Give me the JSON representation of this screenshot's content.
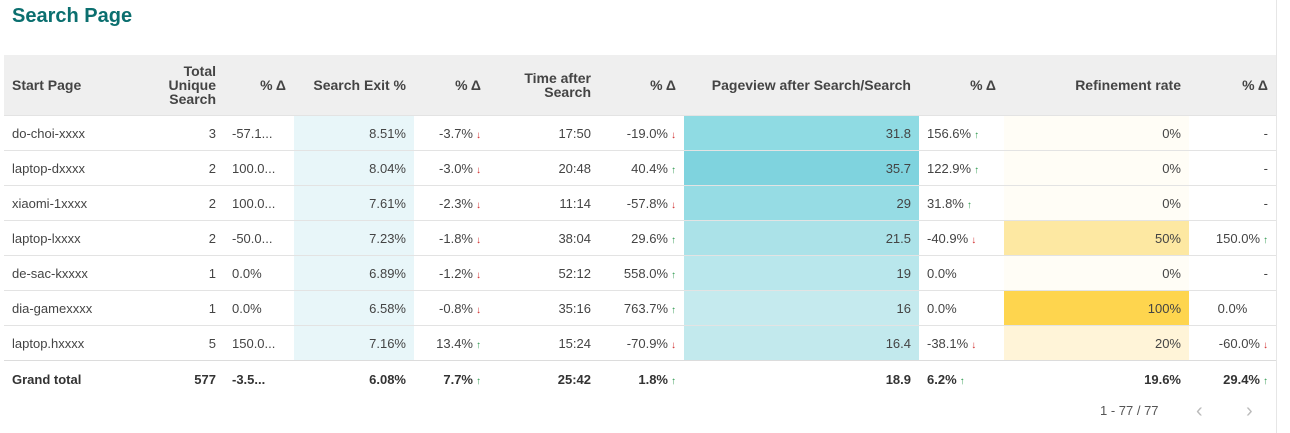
{
  "title": "Search Page",
  "headers": {
    "start_page": "Start Page",
    "total_unique_search": "Total Unique Search",
    "pct_delta": "% Δ",
    "search_exit": "Search Exit %",
    "time_after_search": "Time after Search",
    "pageview_after_search": "Pageview after Search/Search",
    "refinement_rate": "Refinement rate"
  },
  "rows": [
    {
      "page": "do-choi-xxxx",
      "total": "3",
      "total_d": "-57.1...",
      "exit": "8.51%",
      "exit_d": "-3.7%",
      "exit_dir": "down",
      "time": "17:50",
      "time_d": "-19.0%",
      "time_dir": "down",
      "pv": "31.8",
      "pv_d": "156.6%",
      "pv_dir": "up",
      "ref": "0%",
      "ref_d": "-",
      "ref_dir": ""
    },
    {
      "page": "laptop-dxxxx",
      "total": "2",
      "total_d": "100.0...",
      "exit": "8.04%",
      "exit_d": "-3.0%",
      "exit_dir": "down",
      "time": "20:48",
      "time_d": "40.4%",
      "time_dir": "up",
      "pv": "35.7",
      "pv_d": "122.9%",
      "pv_dir": "up",
      "ref": "0%",
      "ref_d": "-",
      "ref_dir": ""
    },
    {
      "page": "xiaomi-1xxxx",
      "total": "2",
      "total_d": "100.0...",
      "exit": "7.61%",
      "exit_d": "-2.3%",
      "exit_dir": "down",
      "time": "11:14",
      "time_d": "-57.8%",
      "time_dir": "down",
      "pv": "29",
      "pv_d": "31.8%",
      "pv_dir": "up",
      "ref": "0%",
      "ref_d": "-",
      "ref_dir": ""
    },
    {
      "page": "laptop-lxxxx",
      "total": "2",
      "total_d": "-50.0...",
      "exit": "7.23%",
      "exit_d": "-1.8%",
      "exit_dir": "down",
      "time": "38:04",
      "time_d": "29.6%",
      "time_dir": "up",
      "pv": "21.5",
      "pv_d": "-40.9%",
      "pv_dir": "down",
      "ref": "50%",
      "ref_d": "150.0%",
      "ref_dir": "up"
    },
    {
      "page": "de-sac-kxxxx",
      "total": "1",
      "total_d": "0.0%",
      "exit": "6.89%",
      "exit_d": "-1.2%",
      "exit_dir": "down",
      "time": "52:12",
      "time_d": "558.0%",
      "time_dir": "up",
      "pv": "19",
      "pv_d": "0.0%",
      "pv_dir": "",
      "ref": "0%",
      "ref_d": "-",
      "ref_dir": ""
    },
    {
      "page": "dia-gamexxxx",
      "total": "1",
      "total_d": "0.0%",
      "exit": "6.58%",
      "exit_d": "-0.8%",
      "exit_dir": "down",
      "time": "35:16",
      "time_d": "763.7%",
      "time_dir": "up",
      "pv": "16",
      "pv_d": "0.0%",
      "pv_dir": "",
      "ref": "100%",
      "ref_d": "0.0%",
      "ref_dir": ""
    },
    {
      "page": "laptop.hxxxx",
      "total": "5",
      "total_d": "150.0...",
      "exit": "7.16%",
      "exit_d": "13.4%",
      "exit_dir": "up",
      "time": "15:24",
      "time_d": "-70.9%",
      "time_dir": "down",
      "pv": "16.4",
      "pv_d": "-38.1%",
      "pv_dir": "down",
      "ref": "20%",
      "ref_d": "-60.0%",
      "ref_dir": "down"
    }
  ],
  "total_row": {
    "page": "Grand total",
    "total": "577",
    "total_d": "-3.5...",
    "exit": "6.08%",
    "exit_d": "7.7%",
    "exit_dir": "up",
    "time": "25:42",
    "time_d": "1.8%",
    "time_dir": "up",
    "pv": "18.9",
    "pv_d": "6.2%",
    "pv_dir": "up",
    "ref": "19.6%",
    "ref_d": "29.4%",
    "ref_dir": "up"
  },
  "cell_colors": {
    "exit": [
      "#e8f6f9",
      "#e8f6f9",
      "#e8f6f9",
      "#e8f6f9",
      "#e8f6f9",
      "#e8f6f9",
      "#e8f6f9"
    ],
    "pv": [
      "#8fdbe3",
      "#7fd3de",
      "#96dce4",
      "#abe2e8",
      "#b9e7ec",
      "#c5eaee",
      "#c2e9ed"
    ],
    "ref": [
      "#fffdf6",
      "#fffdf6",
      "#fffdf6",
      "#fde8a2",
      "#fffdf6",
      "#fed54e",
      "#fff4d8"
    ]
  },
  "colors": {
    "title": "#0b6f6f",
    "up": "#2e9a4f",
    "down": "#d12b2b"
  },
  "icons": {
    "up": "arrow-up-icon",
    "down": "arrow-down-icon",
    "prev": "chevron-left-icon",
    "next": "chevron-right-icon"
  },
  "pagination": {
    "label": "1 - 77 / 77",
    "prev": "‹",
    "next": "›"
  }
}
